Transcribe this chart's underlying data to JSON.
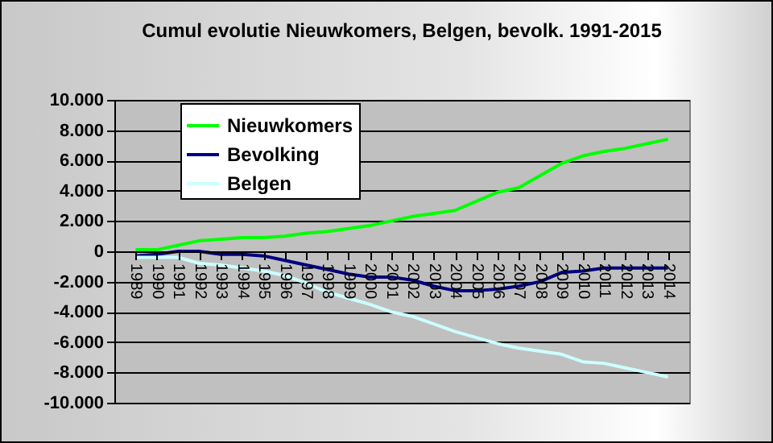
{
  "chart_data": {
    "type": "line",
    "title": "Cumul evolutie Nieuwkomers, Belgen, bevolk. 1991-2015",
    "categories": [
      "1989",
      "1990",
      "1991",
      "1992",
      "1993",
      "1994",
      "1995",
      "1996",
      "1997",
      "1998",
      "1999",
      "2000",
      "2001",
      "2002",
      "2003",
      "2004",
      "2005",
      "2006",
      "2007",
      "2008",
      "2009",
      "2010",
      "2011",
      "2012",
      "2013",
      "2014"
    ],
    "series": [
      {
        "name": "Nieuwkomers",
        "color": "#00ff00",
        "values": [
          100,
          100,
          400,
          700,
          800,
          900,
          900,
          1000,
          1200,
          1300,
          1500,
          1700,
          2000,
          2300,
          2500,
          2700,
          3300,
          3900,
          4200,
          5000,
          5800,
          6300,
          6600,
          6800,
          7100,
          7400
        ]
      },
      {
        "name": "Bevolking",
        "color": "#000080",
        "values": [
          -300,
          -200,
          0,
          0,
          -200,
          -200,
          -300,
          -600,
          -900,
          -1200,
          -1500,
          -1700,
          -1700,
          -1900,
          -2300,
          -2600,
          -2600,
          -2500,
          -2300,
          -2000,
          -1400,
          -1300,
          -1100,
          -1100,
          -1100,
          -1100
        ]
      },
      {
        "name": "Belgen",
        "color": "#ccffff",
        "values": [
          -400,
          -400,
          -400,
          -800,
          -900,
          -1100,
          -1300,
          -1600,
          -2100,
          -2700,
          -3100,
          -3500,
          -4000,
          -4300,
          -4800,
          -5300,
          -5700,
          -6100,
          -6400,
          -6600,
          -6800,
          -7300,
          -7400,
          -7700,
          -8000,
          -8300
        ]
      }
    ],
    "ylim": [
      -10000,
      10000
    ],
    "yticks": [
      {
        "value": -10000,
        "label": "-10.000"
      },
      {
        "value": -8000,
        "label": "-8.000"
      },
      {
        "value": -6000,
        "label": "-6.000"
      },
      {
        "value": -4000,
        "label": "-4.000"
      },
      {
        "value": -2000,
        "label": "-2.000"
      },
      0,
      {
        "value": 2000,
        "label": "2.000"
      },
      {
        "value": 4000,
        "label": "4.000"
      },
      {
        "value": 6000,
        "label": "6.000"
      },
      {
        "value": 8000,
        "label": "8.000"
      },
      {
        "value": 10000,
        "label": "10.000"
      }
    ],
    "grid": "y",
    "legend": "top left",
    "marker": "none",
    "line_style": "solid"
  }
}
